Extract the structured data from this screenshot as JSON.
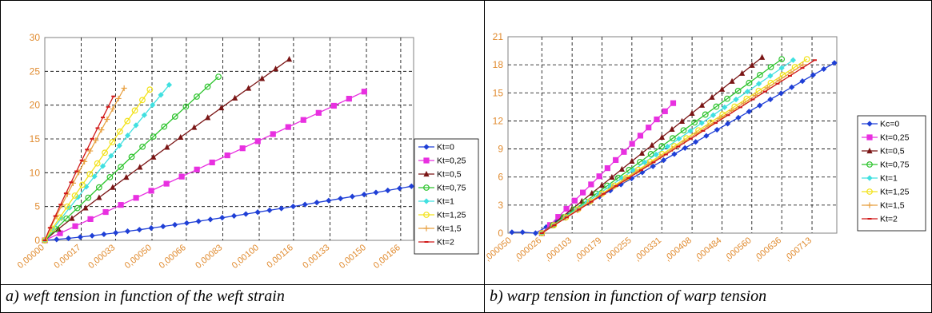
{
  "captions": {
    "left": "a) weft tension in function of the weft strain",
    "right": "b) warp tension in function of warp tension"
  },
  "colors": {
    "axis_tick_labels": "#e08a2e",
    "gridlines": "#000000",
    "plot_border": "#808080"
  },
  "chart_data": [
    {
      "type": "line",
      "title": "",
      "xlabel": "",
      "ylabel": "",
      "grid": true,
      "legend_position": "right",
      "ylim": [
        0,
        30
      ],
      "y_ticks": [
        "0",
        "5",
        "10",
        "15",
        "20",
        "25",
        "30"
      ],
      "x_ticks": [
        "0,00000",
        "0,00017",
        "0,00033",
        "0,00050",
        "0,00066",
        "0,00083",
        "0,00100",
        "0,00116",
        "0,00133",
        "0,00150",
        "0,00166"
      ],
      "x_tick_values": [
        0,
        0.00017,
        0.00033,
        0.0005,
        0.00066,
        0.00083,
        0.001,
        0.00116,
        0.00133,
        0.0015,
        0.00166
      ],
      "xlim": [
        0,
        0.00172
      ],
      "series": [
        {
          "name": "Kt=0",
          "color": "#1f3fd6",
          "marker": "diamond",
          "x_end": 0.00171,
          "y_end": 8.0,
          "curve": 1.2,
          "n": 31
        },
        {
          "name": "Kt=0,25",
          "color": "#e830e0",
          "marker": "square",
          "x_end": 0.00149,
          "y_end": 22.0,
          "curve": 1.0,
          "n": 21
        },
        {
          "name": "Kt=0,5",
          "color": "#7a1515",
          "marker": "triangle",
          "x_end": 0.00114,
          "y_end": 26.8,
          "curve": 0.96,
          "n": 18
        },
        {
          "name": "Kt=0,75",
          "color": "#2dc42d",
          "marker": "circle",
          "x_end": 0.00081,
          "y_end": 24.2,
          "curve": 0.97,
          "n": 16
        },
        {
          "name": "Kt=1",
          "color": "#40e0e0",
          "marker": "diamond",
          "x_end": 0.00058,
          "y_end": 23.0,
          "curve": 0.97,
          "n": 15
        },
        {
          "name": "Kt=1,25",
          "color": "#f2e21a",
          "marker": "circle",
          "x_end": 0.00049,
          "y_end": 22.3,
          "curve": 0.97,
          "n": 14
        },
        {
          "name": "Kt=1,5",
          "color": "#e8a040",
          "marker": "plus",
          "x_end": 0.00037,
          "y_end": 22.5,
          "curve": 0.95,
          "n": 14
        },
        {
          "name": "Kt=2",
          "color": "#d01818",
          "marker": "dash",
          "x_end": 0.00032,
          "y_end": 21.3,
          "curve": 0.95,
          "n": 13
        }
      ]
    },
    {
      "type": "line",
      "title": "",
      "xlabel": "",
      "ylabel": "",
      "grid": true,
      "legend_position": "right",
      "ylim": [
        0,
        21
      ],
      "y_ticks": [
        "0",
        "3",
        "6",
        "9",
        "12",
        "15",
        "18",
        "21"
      ],
      "x_ticks": [
        ",000050",
        ",000026",
        ",000103",
        ",000179",
        ",000255",
        ",000331",
        ",000408",
        ",000484",
        ",000560",
        ",000636",
        ",000713"
      ],
      "x_tick_values": [
        -5e-05,
        2.6e-05,
        0.000103,
        0.000179,
        0.000255,
        0.000331,
        0.000408,
        0.000484,
        0.00056,
        0.000636,
        0.000713
      ],
      "xlim": [
        -6e-05,
        0.000776
      ],
      "series": [
        {
          "name": "Kc=0",
          "color": "#1f3fd6",
          "marker": "diamond",
          "x_start": -5e-05,
          "flat_end": 1e-05,
          "x_end": 0.00077,
          "y_end": 18.2,
          "curve": 1.0,
          "n": 28
        },
        {
          "name": "Kt=0,25",
          "color": "#e830e0",
          "marker": "square",
          "x_start": 2.6e-05,
          "x_end": 0.00036,
          "y_end": 13.9,
          "curve": 1.0,
          "n": 16
        },
        {
          "name": "Kt=0,5",
          "color": "#7a1515",
          "marker": "triangle",
          "x_start": 2.6e-05,
          "x_end": 0.000586,
          "y_end": 18.8,
          "curve": 1.0,
          "n": 22
        },
        {
          "name": "Kt=0,75",
          "color": "#2dc42d",
          "marker": "circle",
          "x_start": 2.6e-05,
          "x_end": 0.000636,
          "y_end": 18.6,
          "curve": 1.0,
          "n": 22
        },
        {
          "name": "Kt=1",
          "color": "#40e0e0",
          "marker": "diamond",
          "x_start": 2.6e-05,
          "x_end": 0.000665,
          "y_end": 18.5,
          "curve": 1.0,
          "n": 22
        },
        {
          "name": "Kt=1,25",
          "color": "#f2e21a",
          "marker": "circle",
          "x_start": 2.6e-05,
          "x_end": 0.0007,
          "y_end": 18.6,
          "curve": 1.0,
          "n": 22
        },
        {
          "name": "Kt=1,5",
          "color": "#e8a040",
          "marker": "plus",
          "x_start": 2.6e-05,
          "x_end": 0.00069,
          "y_end": 18.0,
          "curve": 1.0,
          "n": 22
        },
        {
          "name": "Kt=2",
          "color": "#d01818",
          "marker": "dash",
          "x_start": 2.6e-05,
          "x_end": 0.00072,
          "y_end": 18.5,
          "curve": 1.0,
          "n": 22
        }
      ]
    }
  ]
}
